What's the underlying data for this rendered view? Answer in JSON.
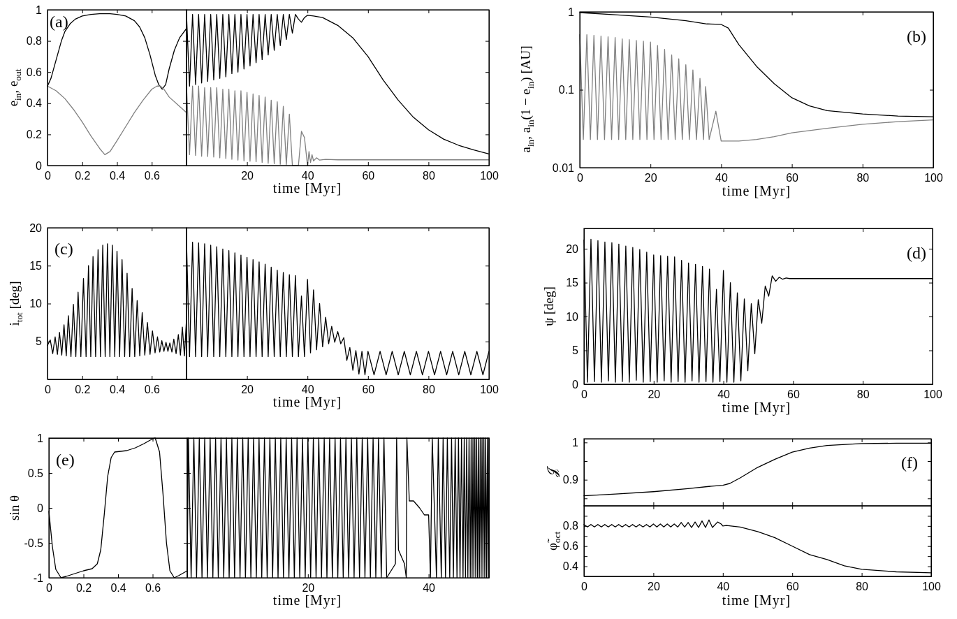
{
  "chart_data": [
    {
      "type": "line",
      "ylabel": "e$_{in}$,  e$_{out}$",
      "annotations": [
        "(a)"
      ],
      "xlim": [
        0,
        0.8
      ],
      "xticks": [
        0,
        0.2,
        0.4,
        0.6
      ],
      "ylim": [
        0,
        1
      ],
      "yticks": [
        0,
        0.2,
        0.4,
        0.6,
        0.8,
        1
      ],
      "series": [
        {
          "color": "#000000",
          "x": [
            0,
            0.02,
            0.05,
            0.08,
            0.1,
            0.13,
            0.16,
            0.2,
            0.25,
            0.3,
            0.33,
            0.36,
            0.4,
            0.45,
            0.5,
            0.53,
            0.56,
            0.59,
            0.62,
            0.64,
            0.66,
            0.68,
            0.7,
            0.73,
            0.76,
            0.8
          ],
          "values": [
            0.51,
            0.56,
            0.68,
            0.8,
            0.86,
            0.91,
            0.94,
            0.96,
            0.97,
            0.975,
            0.975,
            0.975,
            0.97,
            0.96,
            0.93,
            0.89,
            0.82,
            0.71,
            0.58,
            0.52,
            0.49,
            0.52,
            0.62,
            0.74,
            0.82,
            0.88
          ]
        },
        {
          "color": "#808080",
          "x": [
            0,
            0.05,
            0.1,
            0.15,
            0.2,
            0.25,
            0.3,
            0.33,
            0.36,
            0.4,
            0.45,
            0.5,
            0.55,
            0.6,
            0.63,
            0.65,
            0.67,
            0.7,
            0.75,
            0.8
          ],
          "values": [
            0.51,
            0.48,
            0.43,
            0.36,
            0.28,
            0.19,
            0.11,
            0.07,
            0.09,
            0.16,
            0.25,
            0.34,
            0.42,
            0.49,
            0.51,
            0.51,
            0.49,
            0.44,
            0.39,
            0.34
          ]
        }
      ]
    },
    {
      "type": "line",
      "xlabel": "time [Myr]",
      "xlim": [
        0,
        100
      ],
      "xticks": [
        20,
        40,
        60,
        80,
        100
      ],
      "ylim": [
        0,
        1
      ],
      "yticks": [
        0,
        0.2,
        0.4,
        0.6,
        0.8,
        1
      ],
      "tick_labels": "x",
      "series": [
        {
          "color": "#000000",
          "x": [
            0,
            1,
            2,
            3,
            4,
            5,
            6,
            7,
            8,
            9,
            10,
            11,
            12,
            13,
            14,
            15,
            16,
            17,
            18,
            19,
            20,
            21,
            22,
            23,
            24,
            25,
            26,
            27,
            28,
            29,
            30,
            31,
            32,
            33,
            34,
            35,
            36,
            37,
            38,
            39,
            40,
            42,
            45,
            50,
            55,
            60,
            65,
            70,
            75,
            80,
            85,
            90,
            95,
            100
          ],
          "values": [
            0.97,
            0.51,
            0.97,
            0.52,
            0.97,
            0.53,
            0.97,
            0.54,
            0.97,
            0.55,
            0.97,
            0.56,
            0.97,
            0.57,
            0.97,
            0.59,
            0.97,
            0.6,
            0.97,
            0.62,
            0.97,
            0.64,
            0.97,
            0.66,
            0.97,
            0.68,
            0.97,
            0.71,
            0.97,
            0.74,
            0.97,
            0.77,
            0.97,
            0.81,
            0.97,
            0.85,
            0.97,
            0.94,
            0.92,
            0.95,
            0.965,
            0.96,
            0.95,
            0.9,
            0.82,
            0.7,
            0.55,
            0.42,
            0.31,
            0.23,
            0.17,
            0.13,
            0.1,
            0.075
          ]
        },
        {
          "color": "#808080",
          "x": [
            0,
            1,
            2,
            3,
            4,
            5,
            6,
            7,
            8,
            9,
            10,
            11,
            12,
            13,
            14,
            15,
            16,
            17,
            18,
            19,
            20,
            21,
            22,
            23,
            24,
            25,
            26,
            27,
            28,
            29,
            30,
            31,
            32,
            33,
            34,
            35,
            37,
            38,
            39,
            40,
            40.5,
            41,
            41.5,
            42,
            43,
            44,
            46,
            50,
            60,
            100
          ],
          "values": [
            0.51,
            0.07,
            0.51,
            0.065,
            0.51,
            0.06,
            0.5,
            0.058,
            0.5,
            0.055,
            0.5,
            0.05,
            0.49,
            0.045,
            0.49,
            0.04,
            0.48,
            0.035,
            0.48,
            0.03,
            0.47,
            0.028,
            0.46,
            0.025,
            0.45,
            0.02,
            0.44,
            0.015,
            0.42,
            0.012,
            0.41,
            0.008,
            0.38,
            0.005,
            0.33,
            0,
            0,
            0.22,
            0.18,
            0,
            0.09,
            0.02,
            0.07,
            0.03,
            0.05,
            0.035,
            0.04,
            0.037,
            0.037,
            0.037
          ]
        }
      ]
    },
    {
      "type": "line",
      "xlabel": "time [Myr]",
      "ylabel": "a$_{in}$,  a$_{in}$(1 − e$_{in}$) [AU]",
      "annotations": [
        "(b)"
      ],
      "log": "y",
      "xlim": [
        0,
        100
      ],
      "xticks": [
        0,
        20,
        40,
        60,
        80,
        100
      ],
      "ylim": [
        0.01,
        1
      ],
      "yticks": [
        0.01,
        0.1,
        1
      ],
      "series": [
        {
          "color": "#000000",
          "x": [
            0,
            10,
            20,
            30,
            36,
            40,
            42,
            45,
            50,
            55,
            60,
            65,
            70,
            80,
            90,
            100
          ],
          "values": [
            0.98,
            0.92,
            0.86,
            0.77,
            0.7,
            0.69,
            0.62,
            0.38,
            0.2,
            0.12,
            0.079,
            0.062,
            0.054,
            0.049,
            0.046,
            0.045
          ]
        },
        {
          "color": "#808080",
          "x": [
            0,
            1,
            2,
            3,
            4,
            5,
            6,
            7,
            8,
            9,
            10,
            11,
            12,
            13,
            14,
            15,
            16,
            17,
            18,
            19,
            20,
            21,
            22,
            23,
            24,
            25,
            26,
            27,
            28,
            29,
            30,
            31,
            32,
            33,
            34,
            35,
            35.6,
            36.6,
            38.5,
            40,
            42,
            45,
            50,
            55,
            60,
            70,
            80,
            90,
            100
          ],
          "values": [
            0.51,
            0.023,
            0.51,
            0.023,
            0.5,
            0.023,
            0.49,
            0.023,
            0.48,
            0.023,
            0.47,
            0.023,
            0.45,
            0.023,
            0.44,
            0.023,
            0.43,
            0.023,
            0.42,
            0.023,
            0.41,
            0.023,
            0.37,
            0.023,
            0.33,
            0.023,
            0.28,
            0.023,
            0.25,
            0.023,
            0.21,
            0.023,
            0.18,
            0.023,
            0.14,
            0.023,
            0.11,
            0.023,
            0.053,
            0.022,
            0.022,
            0.022,
            0.023,
            0.025,
            0.028,
            0.032,
            0.036,
            0.039,
            0.041
          ]
        }
      ]
    },
    {
      "type": "line",
      "ylabel": "i$_{tot}$ [deg]",
      "annotations": [
        "(c)"
      ],
      "xlim": [
        0,
        0.8
      ],
      "xticks": [
        0,
        0.2,
        0.4,
        0.6
      ],
      "ylim": [
        0,
        20
      ],
      "yticks": [
        5,
        10,
        15,
        20
      ],
      "series": [
        {
          "color": "#000000",
          "x": [
            0,
            0.016,
            0.03,
            0.044,
            0.057,
            0.069,
            0.082,
            0.095,
            0.108,
            0.12,
            0.135,
            0.149,
            0.163,
            0.176,
            0.192,
            0.207,
            0.222,
            0.236,
            0.249,
            0.262,
            0.277,
            0.291,
            0.305,
            0.318,
            0.332,
            0.345,
            0.359,
            0.373,
            0.387,
            0.4,
            0.415,
            0.429,
            0.444,
            0.458,
            0.473,
            0.487,
            0.502,
            0.516,
            0.531,
            0.545,
            0.56,
            0.575,
            0.59,
            0.604,
            0.619,
            0.633,
            0.646,
            0.658,
            0.67,
            0.682,
            0.693,
            0.704,
            0.716,
            0.727,
            0.74,
            0.753,
            0.765,
            0.776,
            0.788,
            0.8
          ],
          "values": [
            4.5,
            5.2,
            3.4,
            5.6,
            3.3,
            6.2,
            3.2,
            7.2,
            3.1,
            8.4,
            3,
            9.9,
            3,
            11.5,
            3,
            13.3,
            3,
            15,
            3,
            16.2,
            3,
            17.1,
            3,
            17.7,
            3,
            17.9,
            3,
            17.7,
            3,
            16.9,
            3,
            15.8,
            3,
            14,
            3,
            12,
            3,
            10.4,
            3.1,
            8.8,
            3.2,
            7.5,
            3.3,
            6.4,
            3.5,
            5.6,
            3.6,
            5.1,
            3.7,
            4.9,
            3.7,
            4.8,
            3.6,
            5.3,
            3.4,
            5.9,
            3.2,
            6.9,
            3.1,
            8
          ]
        }
      ]
    },
    {
      "type": "line",
      "xlabel": "time [Myr]",
      "xlim": [
        0,
        100
      ],
      "xticks": [
        20,
        40,
        60,
        80,
        100
      ],
      "ylim": [
        0,
        20
      ],
      "yticks": [
        5,
        10,
        15,
        20
      ],
      "tick_labels": "x",
      "series": [
        {
          "color": "#000000",
          "x": [
            0,
            1,
            2,
            3,
            4,
            5,
            6,
            7,
            8,
            9,
            10,
            11,
            12,
            13,
            14,
            15,
            16,
            17,
            18,
            19,
            20,
            21,
            22,
            23,
            24,
            25,
            26,
            27,
            28,
            29,
            30,
            31,
            32,
            33,
            34,
            35,
            36,
            37,
            38,
            39,
            40,
            41,
            42,
            43,
            44,
            45,
            46,
            47,
            48,
            49,
            50,
            51,
            52,
            53,
            54,
            55,
            56,
            57,
            58,
            59,
            60,
            62,
            64,
            66,
            68,
            70,
            72,
            74,
            76,
            78,
            80,
            82,
            84,
            86,
            88,
            90,
            92,
            94,
            96,
            98,
            100
          ],
          "values": [
            18.2,
            3,
            18.1,
            3,
            18,
            3,
            17.9,
            3,
            17.7,
            3,
            17.5,
            3,
            17.2,
            3,
            17,
            3,
            16.7,
            3,
            16.4,
            3,
            16.1,
            3,
            15.8,
            3,
            15.5,
            3,
            15.2,
            3,
            14.8,
            3,
            14.4,
            3,
            14.1,
            3,
            13.8,
            3,
            13.7,
            3,
            11,
            3,
            13.2,
            3.5,
            11.8,
            3.9,
            10,
            4.3,
            8.2,
            4.7,
            7,
            4.9,
            6.3,
            4.7,
            5.5,
            2.5,
            4.2,
            1.2,
            3.8,
            0.7,
            3.7,
            0.6,
            3.7,
            0.6,
            3.7,
            0.6,
            3.7,
            0.6,
            3.7,
            0.6,
            3.7,
            0.6,
            3.7,
            0.6,
            3.7,
            0.6,
            3.7,
            0.6,
            3.7,
            0.6,
            3.7,
            0.6,
            3.7
          ]
        }
      ]
    },
    {
      "type": "line",
      "xlabel": "time [Myr]",
      "ylabel": "ψ [deg]",
      "annotations": [
        "(d)"
      ],
      "xlim": [
        0,
        100
      ],
      "xticks": [
        0,
        20,
        40,
        60,
        80,
        100
      ],
      "ylim": [
        0,
        23
      ],
      "yticks": [
        0,
        5,
        10,
        15,
        20
      ],
      "series": [
        {
          "color": "#000000",
          "x": [
            0,
            1,
            2,
            3,
            4,
            5,
            6,
            7,
            8,
            9,
            10,
            11,
            12,
            13,
            14,
            15,
            16,
            17,
            18,
            19,
            20,
            21,
            22,
            23,
            24,
            25,
            26,
            27,
            28,
            29,
            30,
            31,
            32,
            33,
            34,
            35,
            36,
            37,
            38,
            39,
            40,
            41,
            42,
            43,
            44,
            45,
            46,
            47,
            48,
            49,
            50,
            51,
            52,
            53,
            54,
            55,
            56,
            57,
            58,
            59,
            60,
            70,
            80,
            90,
            100
          ],
          "values": [
            21.3,
            0.3,
            21.4,
            0.4,
            21.2,
            0.3,
            21,
            0.5,
            20.9,
            0.3,
            20.7,
            0.4,
            20.4,
            0.3,
            20.2,
            0.6,
            19.9,
            0.3,
            19.5,
            0.4,
            19.1,
            0.3,
            19,
            0.5,
            18.9,
            0.3,
            18.8,
            0.4,
            18.3,
            0.3,
            17.9,
            0.5,
            17.7,
            0.3,
            17.4,
            0.4,
            17,
            0.3,
            14,
            0.4,
            16.8,
            0.3,
            15,
            0.3,
            13.5,
            0.5,
            12.6,
            2,
            11.9,
            4.5,
            12.5,
            9,
            14.5,
            13,
            16,
            15.2,
            15.8,
            15.5,
            15.7,
            15.6,
            15.6,
            15.6,
            15.6,
            15.6,
            15.6
          ]
        }
      ]
    },
    {
      "type": "line",
      "ylabel": "sin θ",
      "annotations": [
        "(e)"
      ],
      "xlim": [
        0,
        0.8
      ],
      "xticks": [
        0,
        0.2,
        0.4,
        0.6
      ],
      "ylim": [
        -1,
        1
      ],
      "yticks": [
        -1,
        -0.5,
        0,
        0.5,
        1
      ],
      "series": [
        {
          "color": "#000000",
          "x": [
            0,
            0.02,
            0.04,
            0.07,
            0.1,
            0.15,
            0.2,
            0.25,
            0.28,
            0.3,
            0.32,
            0.34,
            0.36,
            0.38,
            0.45,
            0.5,
            0.55,
            0.6,
            0.615,
            0.64,
            0.66,
            0.68,
            0.7,
            0.725,
            0.75,
            0.8
          ],
          "values": [
            -0.05,
            -0.55,
            -0.88,
            -1,
            -0.98,
            -0.94,
            -0.9,
            -0.87,
            -0.8,
            -0.6,
            -0.1,
            0.45,
            0.72,
            0.8,
            0.82,
            0.86,
            0.92,
            0.99,
            1,
            0.8,
            0.2,
            -0.5,
            -0.9,
            -1,
            -0.97,
            -0.9
          ]
        }
      ]
    },
    {
      "type": "line",
      "xlabel": "time [Myr]",
      "xlim": [
        0,
        50
      ],
      "xticks": [
        20,
        40
      ],
      "ylim": [
        -1,
        1
      ],
      "yticks": [
        -1,
        -0.5,
        0,
        0.5,
        1
      ],
      "tick_labels": "x",
      "series": [
        {
          "color": "#000000",
          "x": [
            0,
            0.2,
            0.65,
            1.1,
            1.55,
            2,
            2.45,
            2.9,
            3.35,
            3.8,
            4.25,
            4.7,
            5.15,
            5.6,
            6.05,
            6.5,
            6.95,
            7.4,
            7.85,
            8.3,
            8.75,
            9.2,
            9.65,
            10.1,
            10.55,
            11,
            11.45,
            11.9,
            12.35,
            12.8,
            13.25,
            13.7,
            14.15,
            14.6,
            15.05,
            15.5,
            15.95,
            16.4,
            16.85,
            17.3,
            17.75,
            18.2,
            18.65,
            19.1,
            19.55,
            20,
            20.45,
            20.9,
            21.35,
            21.8,
            22.25,
            22.7,
            23.15,
            23.6,
            24.05,
            24.5,
            24.95,
            25.4,
            25.85,
            26.3,
            26.75,
            27.2,
            27.65,
            28.1,
            28.55,
            29,
            29.45,
            29.9,
            30.35,
            30.8,
            31.25,
            31.7,
            32.15,
            32.6,
            33.05,
            34.5,
            34.7,
            35,
            36,
            36.3,
            36.4,
            36.8,
            37.5,
            38.5,
            39.3,
            40,
            40.3,
            40.6,
            41.3,
            41.6,
            42.1,
            42.4,
            42.8,
            43.1,
            43.5,
            43.8,
            44.1,
            44.4,
            44.7,
            44.95,
            45.2,
            45.45,
            45.7,
            45.9,
            46.1,
            46.3,
            46.5,
            46.7,
            46.9,
            47.05,
            47.2,
            47.35,
            47.5,
            47.65,
            47.8,
            47.95,
            48.1,
            48.25,
            48.4,
            48.55,
            48.7,
            48.85,
            49,
            49.15,
            49.3,
            49.45,
            49.6,
            49.75,
            49.9,
            50
          ],
          "values": [
            -0.9,
            1,
            -1,
            1,
            -1,
            1,
            -1,
            1,
            -1,
            1,
            -1,
            1,
            -1,
            1,
            -1,
            1,
            -1,
            1,
            -1,
            1,
            -1,
            1,
            -1,
            1,
            -1,
            1,
            -1,
            1,
            -1,
            1,
            -1,
            1,
            -1,
            1,
            -1,
            1,
            -1,
            1,
            -1,
            1,
            -1,
            1,
            -1,
            1,
            -1,
            1,
            -1,
            1,
            -1,
            1,
            -1,
            1,
            -1,
            1,
            -1,
            1,
            -1,
            1,
            -1,
            1,
            -1,
            1,
            -1,
            1,
            -1,
            1,
            -1,
            1,
            -1,
            1,
            -1,
            1,
            -1,
            1,
            -1,
            -0.8,
            1,
            -0.6,
            -0.8,
            -1,
            1,
            0.1,
            0.1,
            0,
            -0.1,
            -0.1,
            -1,
            1,
            -1,
            1,
            -1,
            1,
            -1,
            1,
            -1,
            1,
            -1,
            1,
            -1,
            1,
            -1,
            1,
            -1,
            1,
            -1,
            1,
            -1,
            1,
            -1,
            1,
            -1,
            1,
            -1,
            1,
            -1,
            1,
            -1,
            1,
            -1,
            1,
            -1,
            1,
            -1,
            1,
            -1,
            1,
            -1,
            1,
            -1,
            1
          ]
        }
      ]
    },
    {
      "type": "line",
      "ylabel": "𝒥",
      "annotations": [
        "(f)"
      ],
      "xlim": [
        0,
        100
      ],
      "xticks": [
        0,
        20,
        40,
        60,
        80,
        100
      ],
      "ylim": [
        0.83,
        1.01
      ],
      "yticks": [
        {
          "value": 0.85,
          "label": null
        },
        0.9,
        {
          "value": 0.95,
          "label": null
        },
        1
      ],
      "tick_labels": "y",
      "series": [
        {
          "color": "#000000",
          "x": [
            0,
            10,
            20,
            30,
            36,
            40,
            42,
            45,
            50,
            55,
            60,
            65,
            70,
            80,
            90,
            100
          ],
          "values": [
            0.857,
            0.862,
            0.868,
            0.876,
            0.882,
            0.885,
            0.89,
            0.905,
            0.933,
            0.955,
            0.974,
            0.985,
            0.992,
            0.997,
            0.998,
            0.998
          ]
        }
      ]
    },
    {
      "type": "line",
      "xlabel": "time [Myr]",
      "ylabel": "φ̃$_{oct}$",
      "xlim": [
        0,
        100
      ],
      "xticks": [
        0,
        20,
        40,
        60,
        80,
        100
      ],
      "ylim": [
        0.3,
        1
      ],
      "yticks": [
        0.4,
        {
          "value": 0.5,
          "label": null
        },
        0.6,
        {
          "value": 0.7,
          "label": null
        },
        0.8,
        {
          "value": 0.9,
          "label": null
        }
      ],
      "series": [
        {
          "color": "#000000",
          "x": [
            0,
            1,
            2,
            3,
            4,
            5,
            6,
            7,
            8,
            9,
            10,
            11,
            12,
            13,
            14,
            15,
            16,
            17,
            18,
            19,
            20,
            21,
            22,
            23,
            24,
            25,
            26,
            27,
            28,
            29,
            30,
            31,
            32,
            33,
            34,
            35,
            36,
            37,
            38.5,
            39.5,
            40,
            41,
            45,
            50,
            55,
            60,
            65,
            70,
            75,
            80,
            90,
            100
          ],
          "values": [
            0.815,
            0.79,
            0.815,
            0.79,
            0.815,
            0.79,
            0.815,
            0.79,
            0.815,
            0.79,
            0.815,
            0.79,
            0.815,
            0.79,
            0.815,
            0.79,
            0.815,
            0.79,
            0.815,
            0.79,
            0.82,
            0.79,
            0.82,
            0.79,
            0.82,
            0.79,
            0.82,
            0.79,
            0.835,
            0.79,
            0.835,
            0.785,
            0.84,
            0.785,
            0.85,
            0.785,
            0.86,
            0.785,
            0.84,
            0.82,
            0.8,
            0.805,
            0.79,
            0.745,
            0.684,
            0.6,
            0.516,
            0.467,
            0.405,
            0.37,
            0.345,
            0.336
          ]
        }
      ]
    }
  ]
}
